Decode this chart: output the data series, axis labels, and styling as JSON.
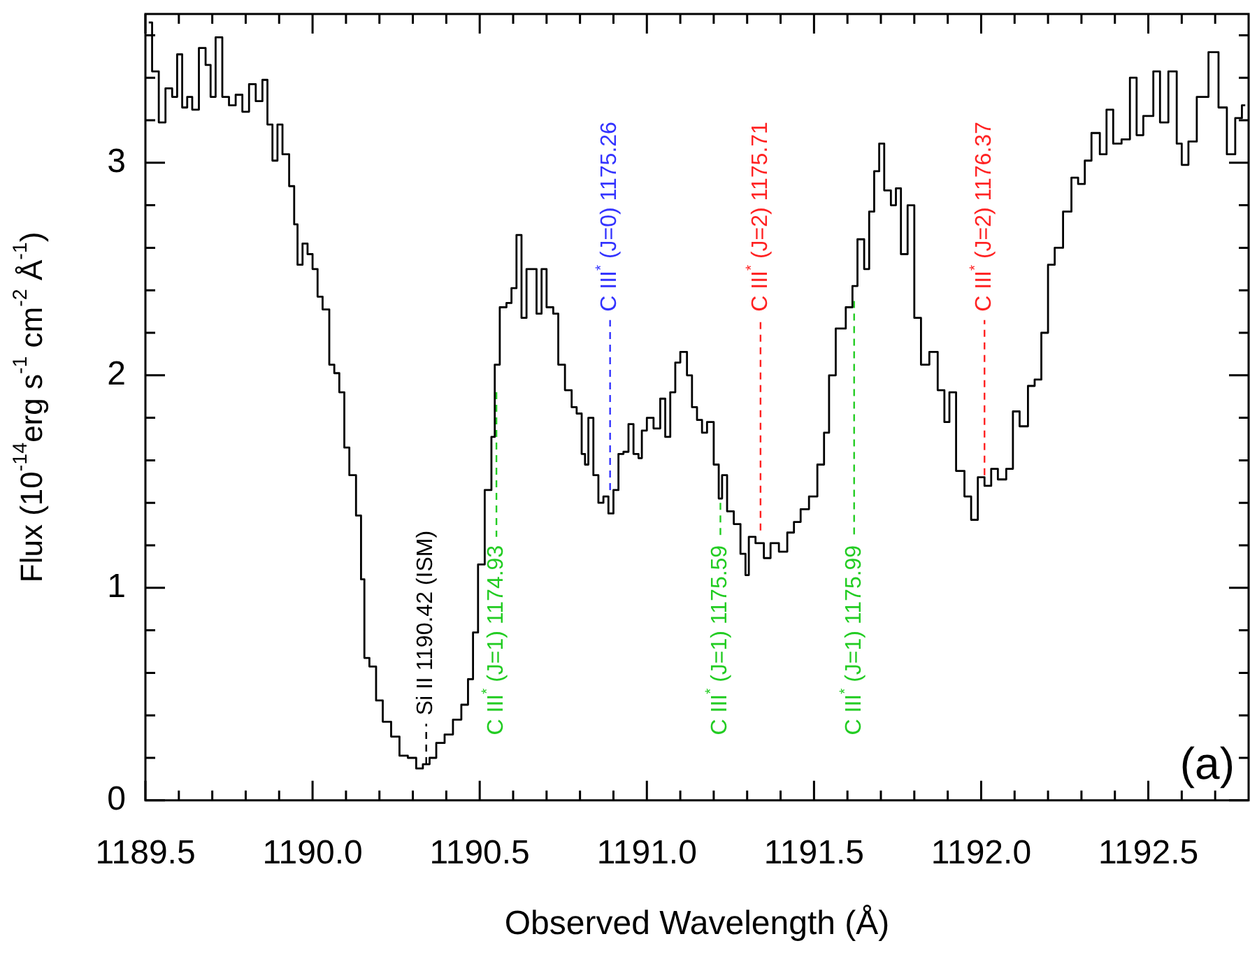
{
  "chart_data": {
    "type": "step",
    "xlabel": "Observed Wavelength (Å)",
    "ylabel": "Flux (10$^{-14}$erg s$^{-1}$ cm$^{-2}$ Å$^{-1}$)",
    "xlim": [
      1189.5,
      1192.8
    ],
    "ylim": [
      0,
      3.7
    ],
    "xticks": [
      1189.5,
      {
        "value": 1189.6,
        "label": null
      },
      {
        "value": 1189.7,
        "label": null
      },
      {
        "value": 1189.8,
        "label": null
      },
      {
        "value": 1189.9,
        "label": null
      },
      {
        "value": 1190.0,
        "label": "1190.0"
      },
      {
        "value": 1190.1,
        "label": null
      },
      {
        "value": 1190.2,
        "label": null
      },
      {
        "value": 1190.3,
        "label": null
      },
      {
        "value": 1190.4,
        "label": null
      },
      1190.5,
      {
        "value": 1190.6,
        "label": null
      },
      {
        "value": 1190.7,
        "label": null
      },
      {
        "value": 1190.8,
        "label": null
      },
      {
        "value": 1190.9,
        "label": null
      },
      {
        "value": 1191.0,
        "label": "1191.0"
      },
      {
        "value": 1191.1,
        "label": null
      },
      {
        "value": 1191.2,
        "label": null
      },
      {
        "value": 1191.3,
        "label": null
      },
      {
        "value": 1191.4,
        "label": null
      },
      1191.5,
      {
        "value": 1191.6,
        "label": null
      },
      {
        "value": 1191.7,
        "label": null
      },
      {
        "value": 1191.8,
        "label": null
      },
      {
        "value": 1191.9,
        "label": null
      },
      {
        "value": 1192.0,
        "label": "1192.0"
      },
      {
        "value": 1192.1,
        "label": null
      },
      {
        "value": 1192.2,
        "label": null
      },
      {
        "value": 1192.3,
        "label": null
      },
      {
        "value": 1192.4,
        "label": null
      },
      1192.5,
      {
        "value": 1192.6,
        "label": null
      },
      {
        "value": 1192.7,
        "label": null
      }
    ],
    "yticks": [
      0,
      {
        "value": 0.2,
        "label": null
      },
      {
        "value": 0.4,
        "label": null
      },
      {
        "value": 0.6,
        "label": null
      },
      {
        "value": 0.8,
        "label": null
      },
      1,
      {
        "value": 1.2,
        "label": null
      },
      {
        "value": 1.4,
        "label": null
      },
      {
        "value": 1.6,
        "label": null
      },
      {
        "value": 1.8,
        "label": null
      },
      2,
      {
        "value": 2.2,
        "label": null
      },
      {
        "value": 2.4,
        "label": null
      },
      {
        "value": 2.6,
        "label": null
      },
      {
        "value": 2.8,
        "label": null
      },
      3,
      {
        "value": 3.2,
        "label": null
      },
      {
        "value": 3.4,
        "label": null
      },
      {
        "value": 3.6,
        "label": null
      }
    ],
    "grid": false,
    "legend": false,
    "series": [
      {
        "color": "#000000",
        "x": [
          1189.51,
          1189.53,
          1189.55,
          1189.57,
          1189.59,
          1189.6,
          1189.62,
          1189.63,
          1189.65,
          1189.67,
          1189.69,
          1189.7,
          1189.72,
          1189.74,
          1189.76,
          1189.78,
          1189.8,
          1189.82,
          1189.84,
          1189.86,
          1189.87,
          1189.89,
          1189.9,
          1189.92,
          1189.94,
          1189.95,
          1189.96,
          1189.98,
          1189.99,
          1190.01,
          1190.02,
          1190.04,
          1190.06,
          1190.07,
          1190.09,
          1190.1,
          1190.12,
          1190.14,
          1190.15,
          1190.16,
          1190.18,
          1190.2,
          1190.22,
          1190.25,
          1190.27,
          1190.3,
          1190.32,
          1190.34,
          1190.36,
          1190.38,
          1190.41,
          1190.43,
          1190.46,
          1190.47,
          1190.49,
          1190.5,
          1190.53,
          1190.54,
          1190.55,
          1190.57,
          1190.59,
          1190.6,
          1190.62,
          1190.63,
          1190.65,
          1190.66,
          1190.68,
          1190.69,
          1190.71,
          1190.73,
          1190.74,
          1190.77,
          1190.78,
          1190.8,
          1190.81,
          1190.82,
          1190.83,
          1190.85,
          1190.86,
          1190.88,
          1190.89,
          1190.91,
          1190.92,
          1190.94,
          1190.95,
          1190.97,
          1190.98,
          1190.99,
          1191.01,
          1191.03,
          1191.05,
          1191.06,
          1191.08,
          1191.09,
          1191.11,
          1191.13,
          1191.14,
          1191.16,
          1191.17,
          1191.19,
          1191.21,
          1191.22,
          1191.23,
          1191.25,
          1191.27,
          1191.29,
          1191.3,
          1191.31,
          1191.34,
          1191.36,
          1191.38,
          1191.41,
          1191.43,
          1191.45,
          1191.47,
          1191.5,
          1191.52,
          1191.54,
          1191.55,
          1191.58,
          1191.61,
          1191.62,
          1191.64,
          1191.66,
          1191.67,
          1191.69,
          1191.7,
          1191.72,
          1191.74,
          1191.75,
          1191.77,
          1191.79,
          1191.81,
          1191.83,
          1191.86,
          1191.88,
          1191.9,
          1191.91,
          1191.94,
          1191.96,
          1191.98,
          1192.0,
          1192.02,
          1192.04,
          1192.06,
          1192.09,
          1192.1,
          1192.13,
          1192.15,
          1192.17,
          1192.19,
          1192.21,
          1192.23,
          1192.26,
          1192.28,
          1192.3,
          1192.32,
          1192.34,
          1192.37,
          1192.38,
          1192.41,
          1192.43,
          1192.46,
          1192.47,
          1192.5,
          1192.53,
          1192.54,
          1192.58,
          1192.59,
          1192.61,
          1192.63,
          1192.66,
          1192.7,
          1192.72,
          1192.75,
          1192.77,
          1192.79
        ],
        "values": [
          3.66,
          3.43,
          3.19,
          3.35,
          3.31,
          3.51,
          3.26,
          3.31,
          3.25,
          3.54,
          3.46,
          3.31,
          3.59,
          3.31,
          3.27,
          3.32,
          3.24,
          3.37,
          3.29,
          3.39,
          3.18,
          3.01,
          3.18,
          3.04,
          2.89,
          2.71,
          2.52,
          2.62,
          2.57,
          2.5,
          2.37,
          2.31,
          2.05,
          2.01,
          1.92,
          1.66,
          1.53,
          1.34,
          1.04,
          0.67,
          0.63,
          0.47,
          0.37,
          0.3,
          0.21,
          0.2,
          0.15,
          0.17,
          0.2,
          0.27,
          0.31,
          0.38,
          0.45,
          0.57,
          0.79,
          1.11,
          1.46,
          1.71,
          2.05,
          2.32,
          2.34,
          2.41,
          2.66,
          2.27,
          2.5,
          2.5,
          2.29,
          2.5,
          2.32,
          2.29,
          2.05,
          1.93,
          1.85,
          1.82,
          1.63,
          1.58,
          1.8,
          1.53,
          1.4,
          1.43,
          1.35,
          1.46,
          1.63,
          1.64,
          1.77,
          1.63,
          1.61,
          1.74,
          1.8,
          1.75,
          1.89,
          1.71,
          1.92,
          2.06,
          2.11,
          2.0,
          1.85,
          1.79,
          1.73,
          1.78,
          1.58,
          1.42,
          1.53,
          1.36,
          1.3,
          1.16,
          1.06,
          1.24,
          1.21,
          1.14,
          1.21,
          1.17,
          1.26,
          1.31,
          1.37,
          1.43,
          1.58,
          1.73,
          2.0,
          2.22,
          2.32,
          2.42,
          2.64,
          2.5,
          2.77,
          2.96,
          3.09,
          2.87,
          2.8,
          2.88,
          2.57,
          2.8,
          2.27,
          2.05,
          2.11,
          1.93,
          1.78,
          1.92,
          1.55,
          1.43,
          1.32,
          1.52,
          1.48,
          1.56,
          1.51,
          1.56,
          1.83,
          1.76,
          1.95,
          1.98,
          2.2,
          2.52,
          2.6,
          2.77,
          2.93,
          2.9,
          3.01,
          3.14,
          3.04,
          3.25,
          3.09,
          3.11,
          3.4,
          3.13,
          3.22,
          3.43,
          3.19,
          3.43,
          3.09,
          2.99,
          3.1,
          3.31,
          3.52,
          3.26,
          3.04,
          3.21,
          3.27
        ]
      },
      {
        "type": "line",
        "line_style": "dashed",
        "name": "Si II 1190.42 (ISM)",
        "color": "#000000",
        "x": [
          1190.34,
          1190.34
        ],
        "values": [
          0.17,
          0.36
        ]
      },
      {
        "type": "line",
        "line_style": "dashed",
        "name": "C III$^{*}$ (J=1) 1174.93",
        "color": "#22cc22",
        "x": [
          1190.55,
          1190.55
        ],
        "values": [
          1.92,
          1.24
        ]
      },
      {
        "type": "line",
        "line_style": "dashed",
        "name": "C III$^{*}$ (J=0) 1175.26",
        "color": "#3333ff",
        "x": [
          1190.89,
          1190.89
        ],
        "values": [
          1.46,
          2.26
        ]
      },
      {
        "type": "line",
        "line_style": "dashed",
        "name": "C III$^{*}$ (J=1) 1175.59",
        "color": "#22cc22",
        "x": [
          1191.22,
          1191.22
        ],
        "values": [
          1.4,
          1.24
        ]
      },
      {
        "type": "line",
        "line_style": "dashed",
        "name": "C III$^{*}$ (J=2) 1175.71",
        "color": "#ff2222",
        "x": [
          1191.34,
          1191.34
        ],
        "values": [
          1.27,
          2.26
        ]
      },
      {
        "type": "line",
        "line_style": "dashed",
        "name": "C III$^{*}$ (J=1) 1175.99",
        "color": "#22cc22",
        "x": [
          1191.62,
          1191.62
        ],
        "values": [
          2.35,
          1.24
        ]
      },
      {
        "type": "line",
        "line_style": "dashed",
        "name": "C III$^{*}$ (J=2) 1176.37",
        "color": "#ff2222",
        "x": [
          1192.01,
          1192.01
        ],
        "values": [
          1.53,
          2.26
        ]
      }
    ],
    "annotations": [
      "(a)"
    ]
  }
}
